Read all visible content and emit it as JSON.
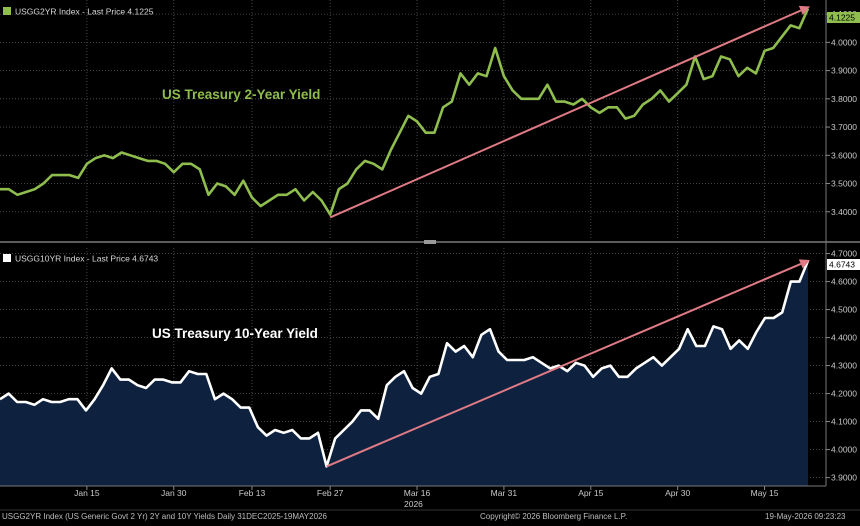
{
  "top_panel": {
    "header": "USGG2YR Index - Last Price 4.1225",
    "annotation": "US Treasury 2-Year Yield",
    "last_price_tag": "4.1225",
    "colors": {
      "line": "#8fbd4e",
      "arrow": "#e07a85",
      "tag_bg": "#8fbd4e"
    }
  },
  "bottom_panel": {
    "header": "USGG10YR Index - Last Price 4.6743",
    "annotation": "US Treasury 10-Year Yield",
    "last_price_tag": "4.6743",
    "colors": {
      "line": "#ffffff",
      "fill": "#0e2240",
      "arrow": "#e07a85",
      "tag_bg": "#ffffff"
    }
  },
  "x_axis": {
    "ticks": [
      "Jan 15",
      "Jan 30",
      "Feb 13",
      "Feb 27",
      "Mar 16",
      "Mar 31",
      "Apr 15",
      "Apr 30",
      "May 15"
    ],
    "year_label": "2026"
  },
  "footer": {
    "left": "USGG2YR Index (US Generic Govt 2 Yr) 2Y and 10Y Yields Daily 31DEC2025-19MAY2026",
    "center": "Copyright© 2026 Bloomberg Finance L.P.",
    "right": "19-May-2026 09:23:23"
  },
  "chart_data": [
    {
      "type": "line",
      "series": [
        {
          "name": "USGG2YR Index",
          "last": 4.1225
        }
      ],
      "ylim": [
        3.3,
        4.15
      ],
      "yticks": [
        "4.1000",
        "4.0000",
        "3.9000",
        "3.8000",
        "3.7000",
        "3.6000",
        "3.5000",
        "3.4000"
      ],
      "ytick_values": [
        4.1,
        4.0,
        3.9,
        3.8,
        3.7,
        3.6,
        3.5,
        3.4
      ],
      "values": [
        3.48,
        3.48,
        3.46,
        3.47,
        3.48,
        3.5,
        3.53,
        3.53,
        3.53,
        3.52,
        3.57,
        3.59,
        3.6,
        3.59,
        3.61,
        3.6,
        3.59,
        3.58,
        3.58,
        3.57,
        3.54,
        3.57,
        3.57,
        3.55,
        3.46,
        3.5,
        3.49,
        3.46,
        3.51,
        3.45,
        3.42,
        3.44,
        3.46,
        3.46,
        3.48,
        3.44,
        3.47,
        3.44,
        3.39,
        3.48,
        3.5,
        3.55,
        3.58,
        3.57,
        3.55,
        3.62,
        3.68,
        3.74,
        3.72,
        3.68,
        3.68,
        3.77,
        3.79,
        3.89,
        3.85,
        3.89,
        3.88,
        3.98,
        3.88,
        3.83,
        3.8,
        3.8,
        3.8,
        3.85,
        3.79,
        3.79,
        3.78,
        3.8,
        3.77,
        3.75,
        3.77,
        3.77,
        3.73,
        3.74,
        3.78,
        3.8,
        3.83,
        3.79,
        3.82,
        3.85,
        3.95,
        3.87,
        3.88,
        3.95,
        3.94,
        3.88,
        3.91,
        3.89,
        3.97,
        3.98,
        4.02,
        4.06,
        4.05,
        4.12
      ],
      "trend_arrow": {
        "from": 3.38,
        "to": 4.12
      }
    },
    {
      "type": "area",
      "series": [
        {
          "name": "USGG10YR Index",
          "last": 4.6743
        }
      ],
      "ylim": [
        3.87,
        4.72
      ],
      "yticks": [
        "4.7000",
        "4.6000",
        "4.5000",
        "4.4000",
        "4.3000",
        "4.2000",
        "4.1000",
        "4.0000",
        "3.9000"
      ],
      "ytick_values": [
        4.7,
        4.6,
        4.5,
        4.4,
        4.3,
        4.2,
        4.1,
        4.0,
        3.9
      ],
      "values": [
        4.18,
        4.2,
        4.17,
        4.17,
        4.16,
        4.18,
        4.17,
        4.17,
        4.18,
        4.18,
        4.14,
        4.18,
        4.23,
        4.29,
        4.25,
        4.25,
        4.23,
        4.22,
        4.25,
        4.25,
        4.24,
        4.24,
        4.28,
        4.27,
        4.27,
        4.18,
        4.2,
        4.18,
        4.15,
        4.15,
        4.08,
        4.05,
        4.07,
        4.06,
        4.07,
        4.04,
        4.04,
        4.06,
        3.94,
        4.04,
        4.07,
        4.1,
        4.14,
        4.14,
        4.11,
        4.23,
        4.26,
        4.28,
        4.22,
        4.2,
        4.26,
        4.27,
        4.38,
        4.35,
        4.37,
        4.33,
        4.41,
        4.43,
        4.35,
        4.32,
        4.32,
        4.32,
        4.33,
        4.31,
        4.29,
        4.3,
        4.28,
        4.31,
        4.3,
        4.26,
        4.29,
        4.3,
        4.26,
        4.26,
        4.29,
        4.31,
        4.33,
        4.3,
        4.33,
        4.36,
        4.43,
        4.37,
        4.37,
        4.44,
        4.43,
        4.36,
        4.39,
        4.36,
        4.42,
        4.47,
        4.47,
        4.49,
        4.6,
        4.6,
        4.6743
      ],
      "trend_arrow": {
        "from": 3.94,
        "to": 4.67
      }
    }
  ]
}
